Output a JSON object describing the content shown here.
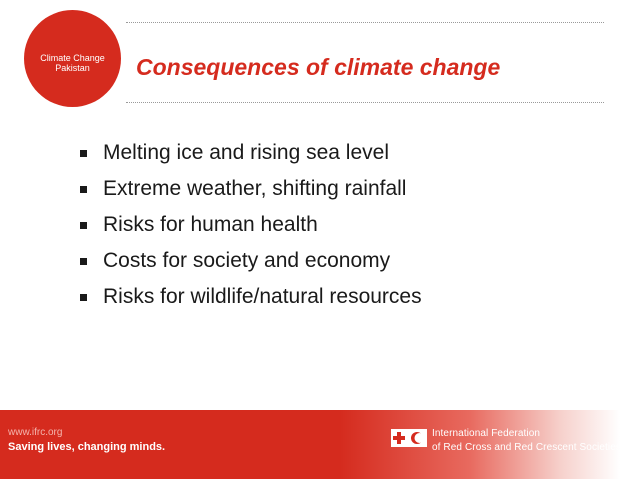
{
  "badge": {
    "text": "Climate Change Pakistan"
  },
  "slide": {
    "title": "Consequences of climate change",
    "bullets": [
      "Melting ice and rising sea level",
      "Extreme weather, shifting rainfall",
      "Risks for human health",
      "Costs for society and economy",
      "Risks for wildlife/natural resources"
    ]
  },
  "footer": {
    "url": "www.ifrc.org",
    "tagline": "Saving lives, changing minds.",
    "org_line1": "International Federation",
    "org_line2": "of Red Cross and Red Crescent Societies",
    "logo_icon": "red-cross-red-crescent-icon"
  },
  "colors": {
    "accent": "#d52b1e",
    "text": "#1a1a1a"
  }
}
